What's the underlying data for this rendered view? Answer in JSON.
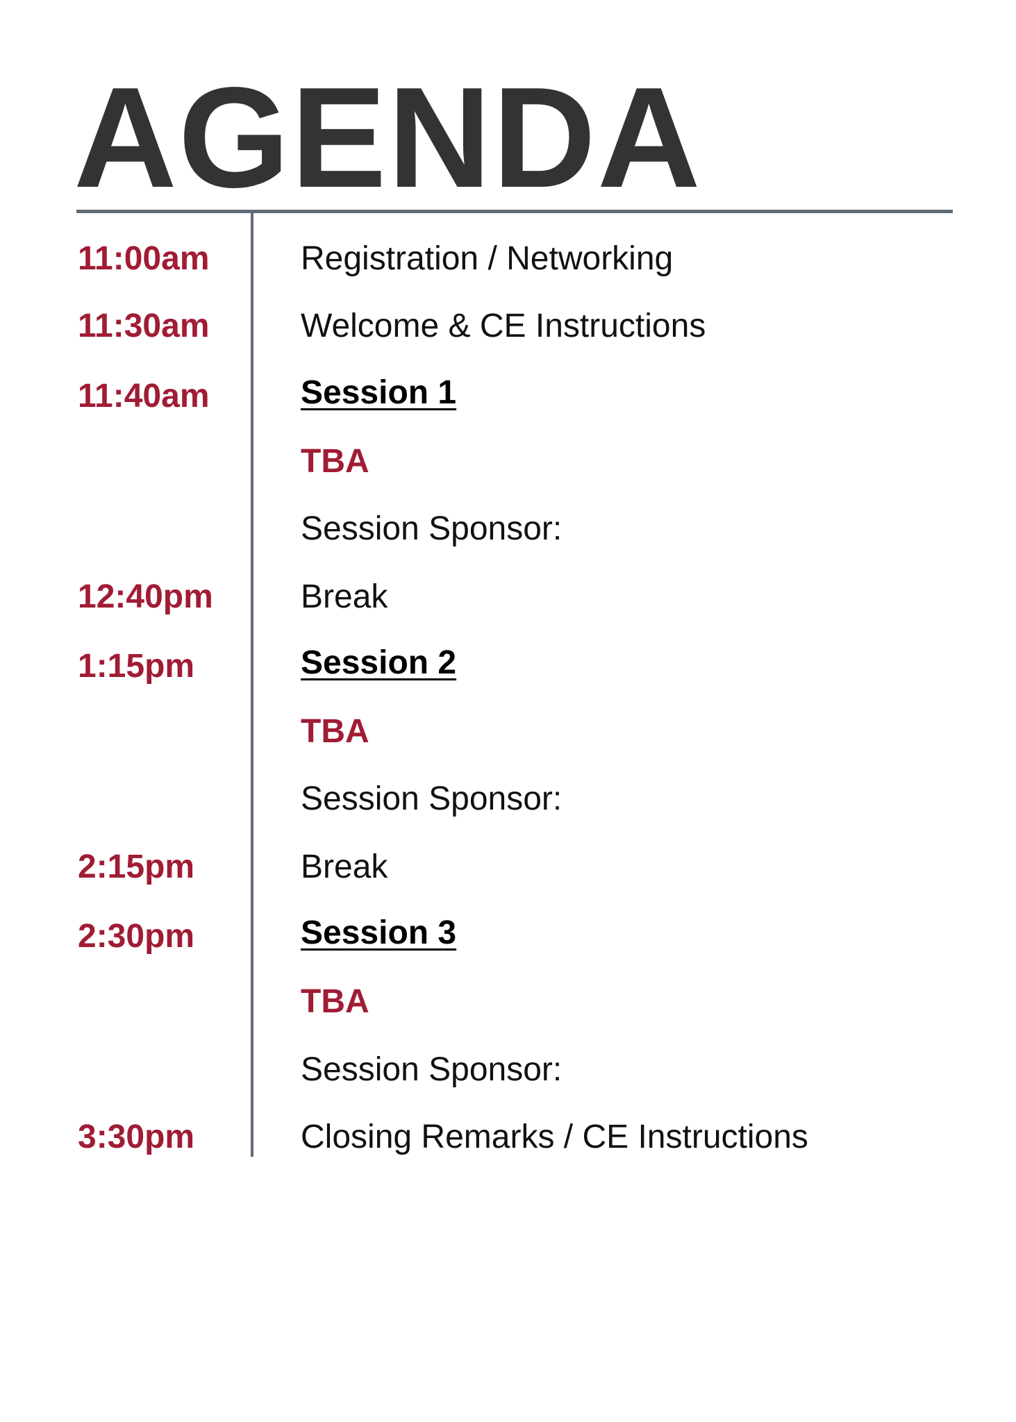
{
  "header": {
    "title": "AGENDA"
  },
  "schedule": [
    {
      "time": "11:00am",
      "text": "Registration / Networking"
    },
    {
      "time": "11:30am",
      "text": "Welcome & CE Instructions"
    },
    {
      "time": "11:40am",
      "session": {
        "title": "Session 1",
        "speaker": "TBA",
        "sponsor": "Session Sponsor:"
      }
    },
    {
      "time": "12:40pm",
      "text": "Break"
    },
    {
      "time": "1:15pm",
      "session": {
        "title": "Session 2",
        "speaker": "TBA",
        "sponsor": "Session Sponsor:"
      }
    },
    {
      "time": "2:15pm",
      "text": "Break"
    },
    {
      "time": "2:30pm",
      "session": {
        "title": "Session 3",
        "speaker": "TBA",
        "sponsor": "Session Sponsor:"
      }
    },
    {
      "time": "3:30pm",
      "text": "Closing Remarks / CE Instructions"
    }
  ]
}
